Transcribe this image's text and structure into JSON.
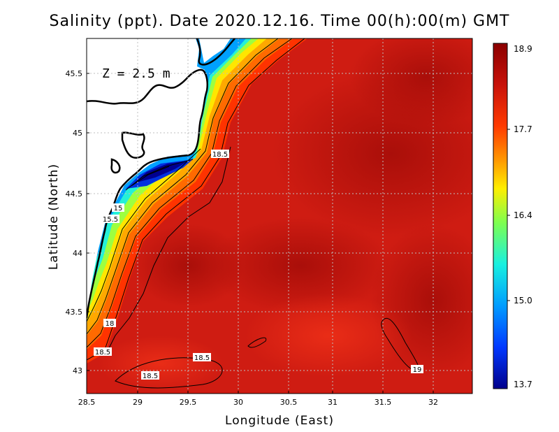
{
  "title": "Salinity (ppt). Date 2020.12.16. Time 00(h):00(m) GMT",
  "depth_label": "Z = 2.5 m",
  "x_axis": {
    "label": "Longitude (East)",
    "ticks": [
      "28.5",
      "29",
      "29.5",
      "30",
      "30.5",
      "31",
      "31.5",
      "32"
    ],
    "range": [
      28.5,
      32.4
    ]
  },
  "y_axis": {
    "label": "Latitude (North)",
    "ticks": [
      "43",
      "43.5",
      "44",
      "44.5",
      "45",
      "45.5"
    ],
    "range": [
      42.8,
      45.8
    ]
  },
  "colorbar": {
    "labels": [
      "18.9",
      "17.7",
      "16.4",
      "15.0",
      "13.7"
    ],
    "range": [
      13.7,
      18.9
    ],
    "colors": [
      "#8b0000",
      "#d61a0a",
      "#ff4000",
      "#ff9900",
      "#ffee00",
      "#8fff40",
      "#20ffd0",
      "#00a8ff",
      "#0040ff",
      "#00008b"
    ]
  },
  "contour_labels": [
    "18.5",
    "15",
    "15.5",
    "18",
    "18.5",
    "18.5",
    "18.5",
    "19"
  ],
  "colors": {
    "sea_base": "#cf1c12",
    "sea_dark": "#a80f0a",
    "land": "#ffffff",
    "coastline": "#000000",
    "grid": "#bfbfbf"
  }
}
